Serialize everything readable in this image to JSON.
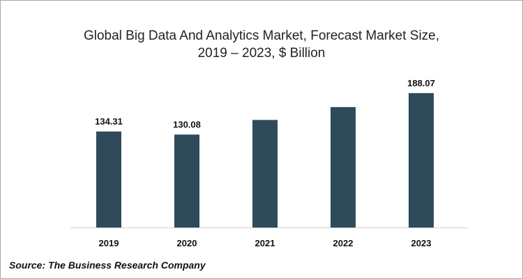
{
  "chart_data": {
    "type": "bar",
    "title_line1": "Global Big Data And Analytics Market, Forecast Market Size,",
    "title_line2": "2019 – 2023, $ Billion",
    "categories": [
      "2019",
      "2020",
      "2021",
      "2022",
      "2023"
    ],
    "values": [
      134.31,
      130.08,
      150.5,
      168.5,
      188.07
    ],
    "data_labels": [
      "134.31",
      "130.08",
      "",
      "",
      "188.07"
    ],
    "xlabel": "",
    "ylabel": "",
    "ylim": [
      0,
      220
    ],
    "grid": false,
    "bar_color": "#2f4b5a",
    "source": "Source: The Business Research Company"
  }
}
